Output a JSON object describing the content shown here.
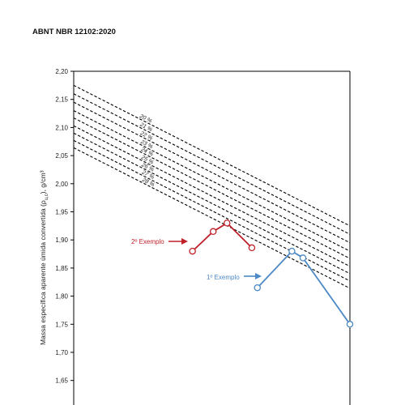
{
  "document": {
    "header": "ABNT NBR 12102:2020"
  },
  "chart_data": {
    "type": "line",
    "title": "",
    "xlabel": "",
    "ylabel": "Massa específica aparente úmida convertida (ρ",
    "ylabel_sub": "u,c",
    "ylabel_unit": "), g/cm³",
    "ylim": [
      1.6,
      2.2
    ],
    "y_ticks": [
      "2,20",
      "2,15",
      "2,10",
      "2,05",
      "2,00",
      "1,95",
      "1,90",
      "1,85",
      "1,80",
      "1,75",
      "1,70",
      "1,65"
    ],
    "x_range": [
      0,
      100
    ],
    "grid": false,
    "saturation_curves": [
      {
        "name": "20 %",
        "y_start": 2.175,
        "y_end": 1.925
      },
      {
        "name": "21 %",
        "y_start": 2.16,
        "y_end": 1.91
      },
      {
        "name": "22 %",
        "y_start": 2.145,
        "y_end": 1.895
      },
      {
        "name": "23 %",
        "y_start": 2.13,
        "y_end": 1.88
      },
      {
        "name": "24 %",
        "y_start": 2.117,
        "y_end": 1.867
      },
      {
        "name": "25 %",
        "y_start": 2.103,
        "y_end": 1.853
      },
      {
        "name": "26 %",
        "y_start": 2.09,
        "y_end": 1.84
      },
      {
        "name": "27 %",
        "y_start": 2.077,
        "y_end": 1.827
      },
      {
        "name": "28 %",
        "y_start": 2.064,
        "y_end": 1.814
      }
    ],
    "series": [
      {
        "name": "2º Exemplo",
        "color": "#c0202a",
        "points": [
          {
            "x": 43,
            "y": 1.88
          },
          {
            "x": 50.5,
            "y": 1.915
          },
          {
            "x": 55.5,
            "y": 1.93
          },
          {
            "x": 64.5,
            "y": 1.886
          }
        ]
      },
      {
        "name": "1º Exemplo",
        "color": "#4d89c4",
        "points": [
          {
            "x": 66.5,
            "y": 1.815
          },
          {
            "x": 79,
            "y": 1.88
          },
          {
            "x": 83,
            "y": 1.868
          },
          {
            "x": 100,
            "y": 1.75
          }
        ]
      }
    ]
  }
}
